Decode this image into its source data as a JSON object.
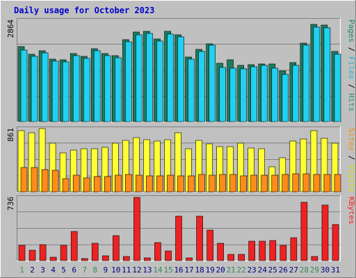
{
  "chart_data": [
    {
      "type": "bar",
      "title": "Daily usage for October 2023",
      "categories": [
        "1",
        "2",
        "3",
        "4",
        "5",
        "6",
        "7",
        "8",
        "9",
        "10",
        "11",
        "12",
        "13",
        "14",
        "15",
        "16",
        "17",
        "18",
        "19",
        "20",
        "21",
        "22",
        "23",
        "24",
        "25",
        "26",
        "27",
        "28",
        "29",
        "30",
        "31"
      ],
      "weekend_days": [
        1,
        7,
        8,
        14,
        15,
        21,
        22,
        28,
        29
      ],
      "ylim": [
        0,
        2864
      ],
      "max_label": "2864",
      "right_labels": [
        {
          "text": "Pages",
          "color": "#1a8a66"
        },
        {
          "text": "Files",
          "color": "#1fb8d8"
        },
        {
          "text": "Hits",
          "color": "#2f8f73"
        }
      ],
      "series": [
        {
          "name": "Hits",
          "color": "#1c7d5f",
          "values": [
            2116,
            1906,
            2004,
            1769,
            1749,
            1925,
            1847,
            2053,
            1925,
            1867,
            2306,
            2526,
            2546,
            2336,
            2546,
            2453,
            1828,
            2043,
            2199,
            1642,
            1749,
            1594,
            1613,
            1633,
            1623,
            1438,
            1662,
            2209,
            2756,
            2717,
            1974
          ]
        },
        {
          "name": "Files",
          "color": "#22d0f0",
          "values": [
            2014,
            1848,
            1945,
            1711,
            1691,
            1867,
            1789,
            1994,
            1867,
            1808,
            2248,
            2458,
            2488,
            2277,
            2478,
            2394,
            1760,
            1974,
            2150,
            1535,
            1507,
            1497,
            1545,
            1594,
            1516,
            1340,
            1594,
            2150,
            2668,
            2648,
            1896
          ]
        }
      ]
    },
    {
      "type": "bar",
      "ylim": [
        0,
        861
      ],
      "max_label": "861",
      "right_labels": [
        {
          "text": "Sites",
          "color": "#ff8c00"
        },
        {
          "text": "Visits",
          "color": "#e0e000"
        }
      ],
      "series": [
        {
          "name": "Visits",
          "color": "#ffff33",
          "values": [
            828,
            808,
            861,
            666,
            527,
            571,
            591,
            591,
            609,
            661,
            704,
            738,
            706,
            686,
            711,
            802,
            589,
            704,
            651,
            619,
            619,
            666,
            593,
            587,
            336,
            467,
            691,
            719,
            828,
            733,
            658
          ]
        },
        {
          "name": "Sites",
          "color": "#ff8c1a",
          "values": [
            330,
            327,
            302,
            295,
            183,
            223,
            188,
            204,
            205,
            228,
            238,
            228,
            214,
            216,
            228,
            213,
            213,
            232,
            225,
            238,
            233,
            218,
            223,
            223,
            228,
            238,
            242,
            243,
            240,
            237,
            233
          ]
        }
      ]
    },
    {
      "type": "bar",
      "ylim": [
        0,
        736
      ],
      "max_label": "736",
      "right_labels": [
        {
          "text": "KBytes",
          "color": "#ff2020"
        }
      ],
      "series": [
        {
          "name": "KBytes",
          "color": "#ee2222",
          "values": [
            177,
            120,
            188,
            39,
            179,
            340,
            22,
            202,
            56,
            293,
            49,
            736,
            29,
            214,
            115,
            519,
            35,
            519,
            352,
            201,
            70,
            70,
            223,
            228,
            232,
            178,
            266,
            683,
            49,
            649,
            417
          ]
        }
      ]
    }
  ]
}
